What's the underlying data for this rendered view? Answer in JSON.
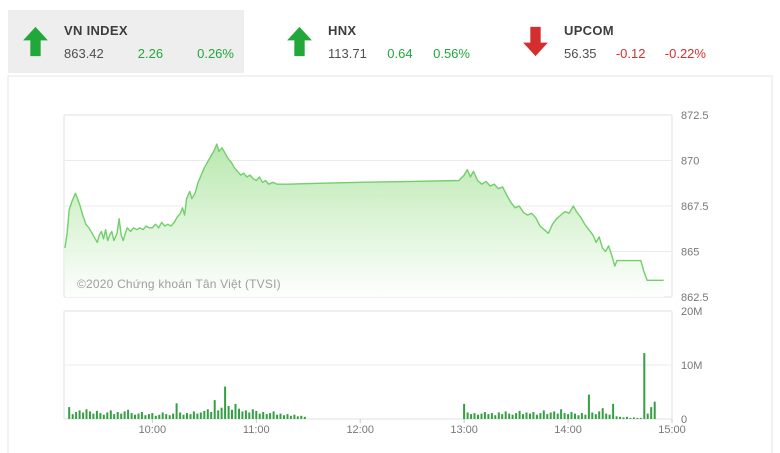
{
  "header": {
    "tabs": [
      {
        "name": "VN INDEX",
        "value": "863.42",
        "change": "2.26",
        "pct": "0.26%",
        "direction": "up",
        "active": true
      },
      {
        "name": "HNX",
        "value": "113.71",
        "change": "0.64",
        "pct": "0.56%",
        "direction": "up",
        "active": false
      },
      {
        "name": "UPCOM",
        "value": "56.35",
        "change": "-0.12",
        "pct": "-0.22%",
        "direction": "down",
        "active": false
      }
    ]
  },
  "watermark": "©2020 Chứng khoán Tân Việt (TVSI)",
  "colors": {
    "up_green": "#21a73a",
    "down_red": "#d32f2f",
    "price_line": "#72cf6a",
    "area_top": "#b5e7aa",
    "area_bottom": "#fdfffd",
    "volume_bar": "#33a043",
    "grid": "#ebebeb",
    "panel_border": "#e2e2e2",
    "axis_text": "#777777",
    "tab_bg": "#eeeeee"
  },
  "chart_data": {
    "type": "area",
    "description": "VN INDEX intraday price (top panel) with volume bars (bottom panel)",
    "x_axis": {
      "unit": "time",
      "range_hours": [
        9.15,
        15.0
      ]
    },
    "x_ticks": [
      {
        "label": "10:00",
        "h": 10
      },
      {
        "label": "11:00",
        "h": 11
      },
      {
        "label": "12:00",
        "h": 12
      },
      {
        "label": "13:00",
        "h": 13
      },
      {
        "label": "14:00",
        "h": 14
      },
      {
        "label": "15:00",
        "h": 15
      }
    ],
    "price": {
      "ylim": [
        862.5,
        872.5
      ],
      "y_ticks": [
        {
          "label": "872.5",
          "v": 872.5
        },
        {
          "label": "870",
          "v": 870
        },
        {
          "label": "867.5",
          "v": 867.5
        },
        {
          "label": "865",
          "v": 865
        },
        {
          "label": "862.5",
          "v": 862.5
        }
      ],
      "grid": true,
      "series": [
        [
          9.16,
          865.2
        ],
        [
          9.18,
          866.0
        ],
        [
          9.2,
          867.3
        ],
        [
          9.23,
          867.8
        ],
        [
          9.26,
          868.2
        ],
        [
          9.28,
          867.9
        ],
        [
          9.3,
          867.6
        ],
        [
          9.33,
          867.0
        ],
        [
          9.36,
          866.5
        ],
        [
          9.39,
          866.3
        ],
        [
          9.42,
          866.0
        ],
        [
          9.45,
          865.7
        ],
        [
          9.47,
          865.5
        ],
        [
          9.49,
          865.9
        ],
        [
          9.51,
          866.1
        ],
        [
          9.53,
          865.7
        ],
        [
          9.55,
          866.2
        ],
        [
          9.57,
          865.6
        ],
        [
          9.59,
          865.9
        ],
        [
          9.61,
          866.1
        ],
        [
          9.63,
          865.6
        ],
        [
          9.66,
          866.0
        ],
        [
          9.68,
          866.8
        ],
        [
          9.7,
          865.9
        ],
        [
          9.72,
          865.6
        ],
        [
          9.74,
          866.0
        ],
        [
          9.76,
          866.3
        ],
        [
          9.79,
          866.1
        ],
        [
          9.82,
          866.3
        ],
        [
          9.85,
          866.2
        ],
        [
          9.88,
          866.3
        ],
        [
          9.91,
          866.2
        ],
        [
          9.94,
          866.4
        ],
        [
          9.97,
          866.3
        ],
        [
          10.0,
          866.3
        ],
        [
          10.03,
          866.5
        ],
        [
          10.06,
          866.3
        ],
        [
          10.09,
          866.6
        ],
        [
          10.12,
          866.4
        ],
        [
          10.15,
          866.5
        ],
        [
          10.18,
          866.4
        ],
        [
          10.21,
          866.6
        ],
        [
          10.24,
          866.9
        ],
        [
          10.27,
          867.1
        ],
        [
          10.29,
          867.4
        ],
        [
          10.31,
          867.0
        ],
        [
          10.33,
          867.9
        ],
        [
          10.36,
          868.3
        ],
        [
          10.38,
          867.9
        ],
        [
          10.41,
          868.2
        ],
        [
          10.44,
          868.8
        ],
        [
          10.47,
          869.2
        ],
        [
          10.5,
          869.6
        ],
        [
          10.53,
          869.9
        ],
        [
          10.56,
          870.2
        ],
        [
          10.59,
          870.5
        ],
        [
          10.62,
          870.9
        ],
        [
          10.64,
          870.5
        ],
        [
          10.67,
          870.7
        ],
        [
          10.7,
          870.4
        ],
        [
          10.73,
          870.1
        ],
        [
          10.76,
          869.9
        ],
        [
          10.79,
          869.6
        ],
        [
          10.82,
          869.4
        ],
        [
          10.85,
          869.2
        ],
        [
          10.88,
          869.3
        ],
        [
          10.91,
          869.1
        ],
        [
          10.94,
          869.2
        ],
        [
          10.97,
          869.0
        ],
        [
          11.0,
          868.9
        ],
        [
          11.03,
          869.1
        ],
        [
          11.06,
          868.8
        ],
        [
          11.09,
          868.9
        ],
        [
          11.12,
          868.7
        ],
        [
          11.16,
          868.8
        ],
        [
          11.2,
          868.7
        ],
        [
          11.3,
          868.7
        ],
        [
          11.6,
          868.75
        ],
        [
          12.0,
          868.8
        ],
        [
          12.5,
          868.85
        ],
        [
          12.95,
          868.9
        ],
        [
          13.0,
          869.2
        ],
        [
          13.03,
          869.5
        ],
        [
          13.06,
          869.1
        ],
        [
          13.09,
          869.4
        ],
        [
          13.13,
          868.9
        ],
        [
          13.17,
          868.7
        ],
        [
          13.21,
          868.85
        ],
        [
          13.25,
          868.6
        ],
        [
          13.29,
          868.7
        ],
        [
          13.33,
          868.45
        ],
        [
          13.37,
          868.55
        ],
        [
          13.41,
          868.1
        ],
        [
          13.45,
          867.7
        ],
        [
          13.49,
          867.4
        ],
        [
          13.53,
          867.5
        ],
        [
          13.57,
          867.15
        ],
        [
          13.61,
          867.0
        ],
        [
          13.65,
          867.1
        ],
        [
          13.69,
          866.85
        ],
        [
          13.73,
          866.4
        ],
        [
          13.77,
          866.2
        ],
        [
          13.81,
          866.0
        ],
        [
          13.85,
          866.5
        ],
        [
          13.89,
          866.8
        ],
        [
          13.93,
          867.0
        ],
        [
          13.97,
          867.2
        ],
        [
          14.01,
          867.1
        ],
        [
          14.05,
          867.5
        ],
        [
          14.08,
          867.2
        ],
        [
          14.12,
          866.9
        ],
        [
          14.16,
          866.5
        ],
        [
          14.2,
          866.2
        ],
        [
          14.24,
          865.9
        ],
        [
          14.27,
          865.5
        ],
        [
          14.3,
          865.8
        ],
        [
          14.33,
          865.2
        ],
        [
          14.36,
          865.0
        ],
        [
          14.39,
          865.3
        ],
        [
          14.42,
          864.8
        ],
        [
          14.45,
          864.2
        ],
        [
          14.47,
          864.5
        ],
        [
          14.5,
          864.5
        ],
        [
          14.7,
          864.5
        ],
        [
          14.73,
          863.9
        ],
        [
          14.76,
          863.42
        ],
        [
          14.92,
          863.42
        ]
      ]
    },
    "volume": {
      "ylim": [
        0,
        20
      ],
      "unit": "millions",
      "y_ticks": [
        {
          "label": "20M",
          "v": 20
        },
        {
          "label": "10M",
          "v": 10
        },
        {
          "label": "0",
          "v": 0
        }
      ],
      "interval_minutes": 2,
      "sessions": [
        {
          "start_hour": 9.2,
          "values": [
            2.2,
            0.9,
            1.3,
            1.6,
            1.2,
            1.8,
            1.4,
            1.0,
            1.5,
            1.1,
            0.8,
            1.2,
            1.6,
            0.9,
            1.3,
            1.0,
            1.4,
            1.7,
            1.1,
            0.8,
            1.0,
            1.3,
            0.7,
            0.9,
            1.1,
            0.6,
            0.8,
            1.2,
            0.9,
            0.7,
            1.0,
            2.9,
            1.2,
            0.8,
            1.1,
            0.9,
            1.4,
            1.0,
            1.2,
            1.5,
            1.8,
            1.3,
            3.5,
            1.6,
            2.1,
            6.0,
            2.4,
            1.7,
            2.8,
            1.9,
            1.4,
            1.6,
            1.2,
            1.8,
            1.5,
            1.0,
            1.3,
            0.9,
            1.1,
            1.4,
            0.8,
            1.0,
            0.7,
            0.9,
            0.6,
            0.8,
            0.5,
            0.6,
            0.4
          ]
        },
        {
          "start_hour": 13.0,
          "values": [
            2.8,
            1.2,
            0.9,
            1.1,
            0.8,
            1.0,
            1.3,
            0.9,
            1.1,
            0.7,
            1.2,
            0.9,
            1.4,
            1.0,
            0.8,
            1.1,
            1.5,
            0.9,
            1.2,
            1.0,
            1.3,
            0.8,
            1.1,
            1.6,
            0.9,
            1.2,
            1.4,
            1.0,
            1.8,
            1.1,
            0.9,
            1.3,
            1.0,
            0.7,
            1.1,
            0.8,
            4.5,
            1.2,
            0.9,
            1.4,
            2.0,
            1.0,
            0.8,
            2.8,
            0.5,
            0.4,
            0.3,
            0.4,
            0.2,
            0.3,
            0.2,
            0.2,
            12.2,
            1.0,
            2.2,
            3.2
          ]
        }
      ]
    }
  }
}
